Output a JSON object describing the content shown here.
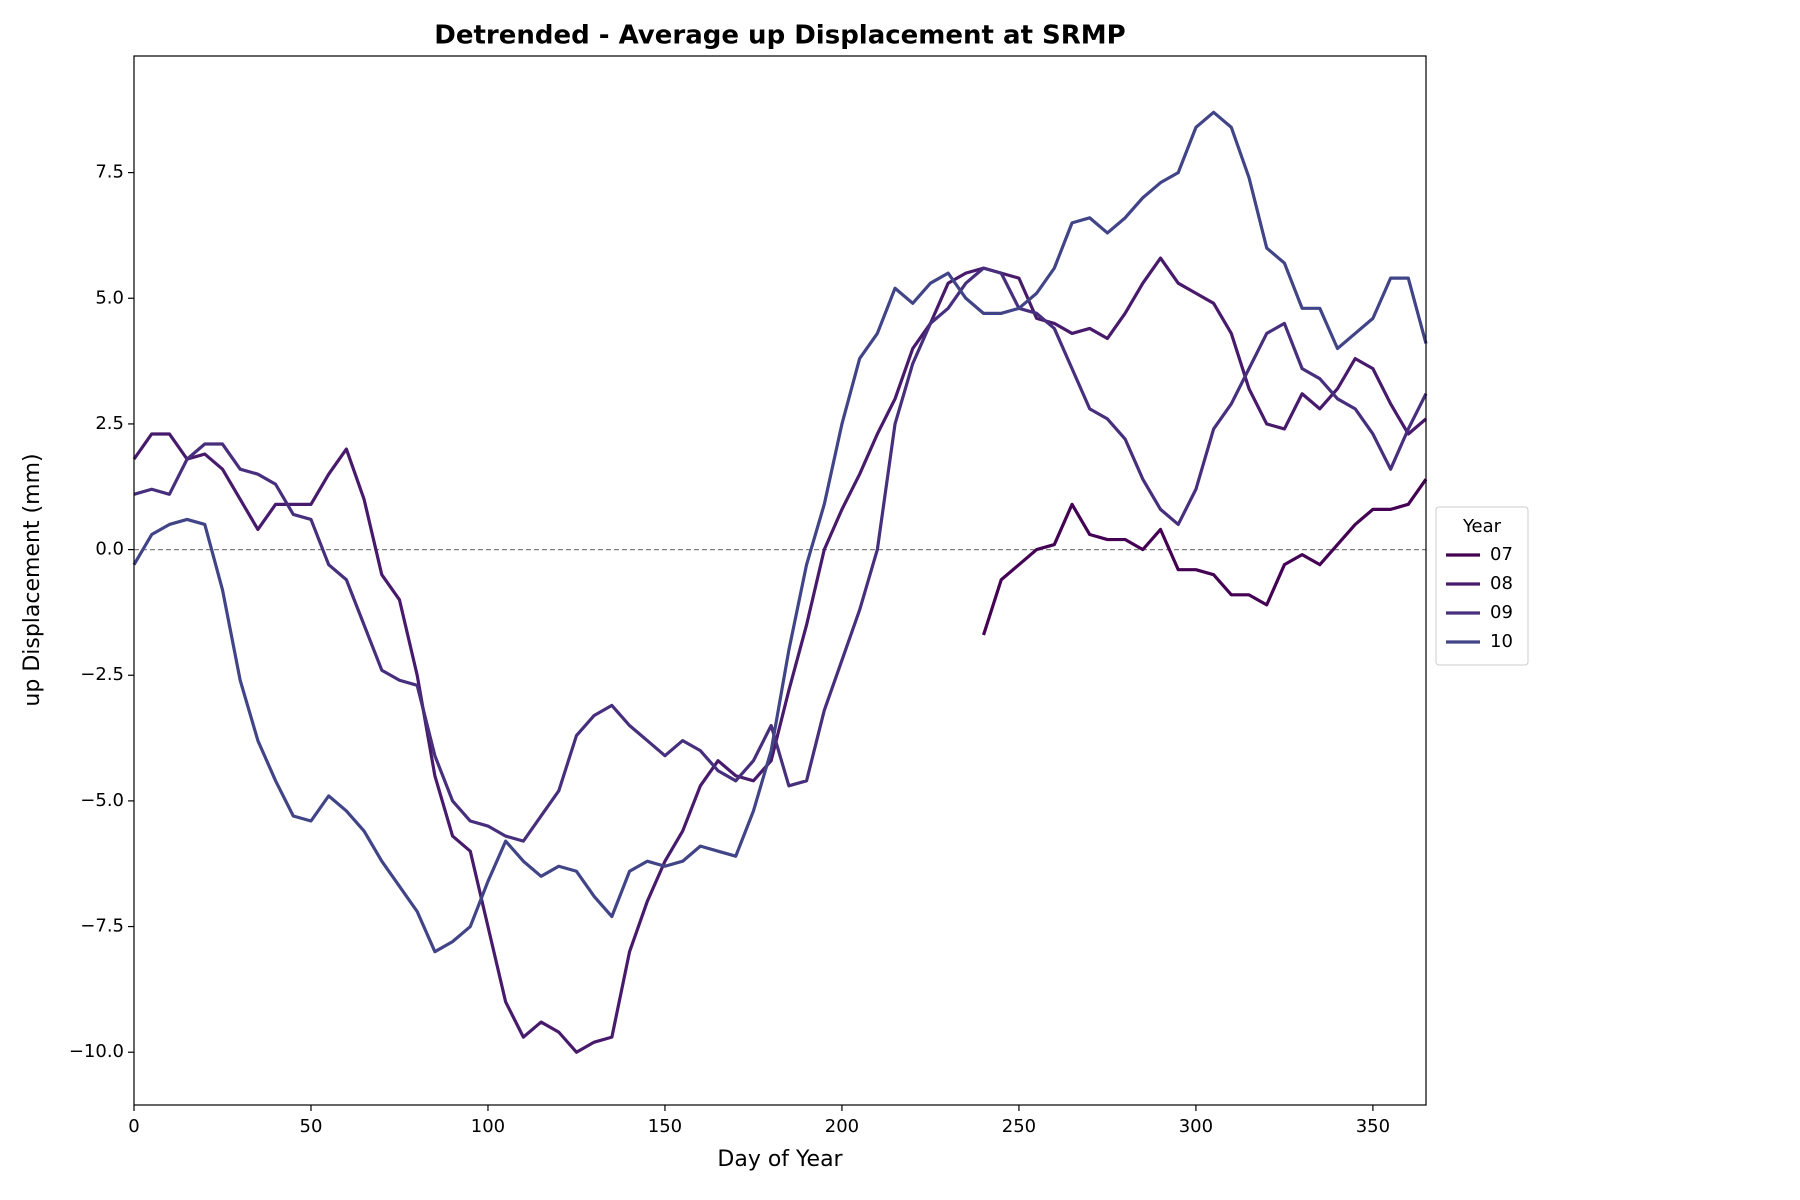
{
  "chart_data": {
    "type": "line",
    "title": "Detrended - Average up Displacement at SRMP",
    "x_label": "Day of Year",
    "y_label": "up Displacement  (mm)",
    "legend_title": "Year",
    "legend_position": "right",
    "zero_line": true,
    "x": [
      0,
      5,
      10,
      15,
      20,
      25,
      30,
      35,
      40,
      45,
      50,
      55,
      60,
      65,
      70,
      75,
      80,
      85,
      90,
      95,
      100,
      105,
      110,
      115,
      120,
      125,
      130,
      135,
      140,
      145,
      150,
      155,
      160,
      165,
      170,
      175,
      180,
      185,
      190,
      195,
      200,
      205,
      210,
      215,
      220,
      225,
      230,
      235,
      240,
      245,
      250,
      255,
      260,
      265,
      270,
      275,
      280,
      285,
      290,
      295,
      300,
      305,
      310,
      315,
      320,
      325,
      330,
      335,
      340,
      345,
      350,
      355,
      360,
      365
    ],
    "xlim": [
      0,
      365
    ],
    "xticks": [
      0,
      50,
      100,
      150,
      200,
      250,
      300,
      350
    ],
    "ylim": [
      -11.05,
      9.82
    ],
    "yticks": [
      {
        "value": -10,
        "label": "−10.0"
      },
      {
        "value": -7.5,
        "label": "−7.5"
      },
      {
        "value": -5,
        "label": "−5.0"
      },
      {
        "value": -2.5,
        "label": "−2.5"
      },
      {
        "value": 0,
        "label": "0.0"
      },
      2.5,
      {
        "value": 5,
        "label": "5.0"
      },
      7.5
    ],
    "series": [
      {
        "name": "07",
        "color": "#440154",
        "values": [
          null,
          null,
          null,
          null,
          null,
          null,
          null,
          null,
          null,
          null,
          null,
          null,
          null,
          null,
          null,
          null,
          null,
          null,
          null,
          null,
          null,
          null,
          null,
          null,
          null,
          null,
          null,
          null,
          null,
          null,
          null,
          null,
          null,
          null,
          null,
          null,
          null,
          null,
          null,
          null,
          null,
          null,
          null,
          null,
          null,
          null,
          null,
          null,
          -1.7,
          -0.6,
          -0.3,
          0.0,
          0.1,
          0.9,
          0.3,
          0.2,
          0.2,
          0.0,
          0.4,
          -0.4,
          -0.4,
          -0.5,
          -0.9,
          -0.9,
          -1.1,
          -0.3,
          -0.1,
          -0.3,
          0.1,
          0.5,
          0.8,
          0.8,
          0.9,
          1.4
        ]
      },
      {
        "name": "08",
        "color": "#481a6c",
        "values": [
          1.8,
          2.3,
          2.3,
          1.8,
          1.9,
          1.6,
          1.0,
          0.4,
          0.9,
          0.9,
          0.9,
          1.5,
          2.0,
          1.0,
          -0.5,
          -1.0,
          -2.5,
          -4.5,
          -5.7,
          -6.0,
          -7.5,
          -9.0,
          -9.7,
          -9.4,
          -9.6,
          -10.0,
          -9.8,
          -9.7,
          -8.0,
          -7.0,
          -6.2,
          -5.6,
          -4.7,
          -4.2,
          -4.5,
          -4.6,
          -4.2,
          -2.8,
          -1.5,
          0.0,
          0.8,
          1.5,
          2.3,
          3.0,
          4.0,
          4.5,
          5.3,
          5.5,
          5.6,
          5.5,
          5.4,
          4.6,
          4.5,
          4.3,
          4.4,
          4.2,
          4.7,
          5.3,
          5.8,
          5.3,
          5.1,
          4.9,
          4.3,
          3.2,
          2.5,
          2.4,
          3.1,
          2.8,
          3.2,
          3.8,
          3.6,
          2.9,
          2.3,
          2.6
        ]
      },
      {
        "name": "09",
        "color": "#472f7d",
        "values": [
          1.1,
          1.2,
          1.1,
          1.8,
          2.1,
          2.1,
          1.6,
          1.5,
          1.3,
          0.7,
          0.6,
          -0.3,
          -0.6,
          -1.5,
          -2.4,
          -2.6,
          -2.7,
          -4.1,
          -5.0,
          -5.4,
          -5.5,
          -5.7,
          -5.8,
          -5.3,
          -4.8,
          -3.7,
          -3.3,
          -3.1,
          -3.5,
          -3.8,
          -4.1,
          -3.8,
          -4.0,
          -4.4,
          -4.6,
          -4.2,
          -3.5,
          -4.7,
          -4.6,
          -3.2,
          -2.2,
          -1.2,
          0.0,
          2.5,
          3.7,
          4.5,
          4.8,
          5.3,
          5.6,
          5.5,
          4.8,
          4.7,
          4.4,
          3.6,
          2.8,
          2.6,
          2.2,
          1.4,
          0.8,
          0.5,
          1.2,
          2.4,
          2.9,
          3.6,
          4.3,
          4.5,
          3.6,
          3.4,
          3.0,
          2.8,
          2.3,
          1.6,
          2.4,
          3.1
        ]
      },
      {
        "name": "10",
        "color": "#414487",
        "values": [
          -0.3,
          0.3,
          0.5,
          0.6,
          0.5,
          -0.8,
          -2.6,
          -3.8,
          -4.6,
          -5.3,
          -5.4,
          -4.9,
          -5.2,
          -5.6,
          -6.2,
          -6.7,
          -7.2,
          -8.0,
          -7.8,
          -7.5,
          -6.6,
          -5.8,
          -6.2,
          -6.5,
          -6.3,
          -6.4,
          -6.9,
          -7.3,
          -6.4,
          -6.2,
          -6.3,
          -6.2,
          -5.9,
          -6.0,
          -6.1,
          -5.2,
          -4.0,
          -2.0,
          -0.3,
          0.9,
          2.5,
          3.8,
          4.3,
          5.2,
          4.9,
          5.3,
          5.5,
          5.0,
          4.7,
          4.7,
          4.8,
          5.1,
          5.6,
          6.5,
          6.6,
          6.3,
          6.6,
          7.0,
          7.3,
          7.5,
          8.4,
          8.7,
          8.4,
          7.4,
          6.0,
          5.7,
          4.8,
          4.8,
          4.0,
          4.3,
          4.6,
          5.4,
          5.4,
          4.1
        ]
      }
    ]
  }
}
